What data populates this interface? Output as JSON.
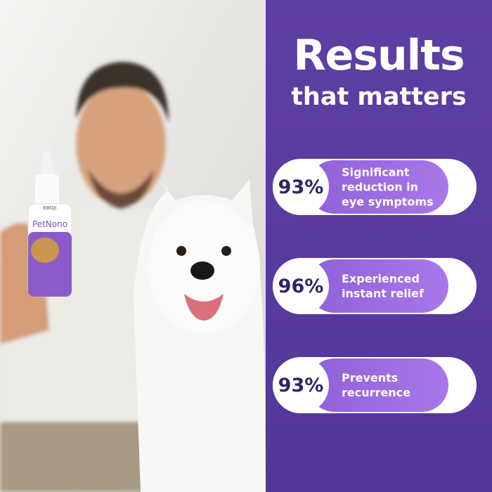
{
  "header": {
    "title_line1": "Results",
    "title_line2": "that matters"
  },
  "stats": [
    {
      "value": "93%",
      "text": "Significant reduction in eye symptoms"
    },
    {
      "value": "96%",
      "text": "Experienced instant relief"
    },
    {
      "value": "93%",
      "text": "Prevents recurrence"
    }
  ],
  "product": {
    "brand": "EBOJI",
    "name": "PetNono"
  }
}
